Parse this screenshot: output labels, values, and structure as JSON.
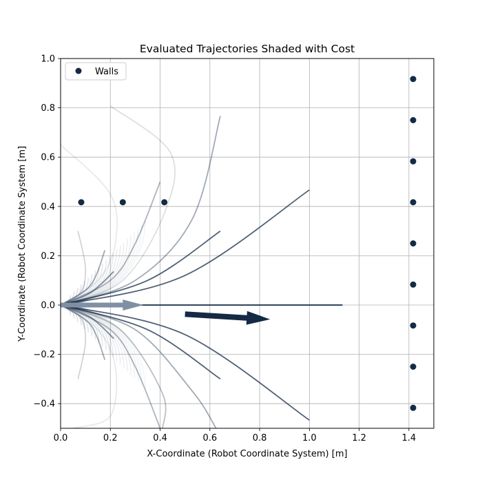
{
  "chart_data": {
    "type": "line",
    "title": "Evaluated Trajectories Shaded with Cost",
    "xlabel": "X-Coordinate (Robot Coordinate System) [m]",
    "ylabel": "Y-Coordinate (Robot Coordinate System [m]",
    "xlim": [
      0.0,
      1.5
    ],
    "ylim": [
      -0.5,
      1.0
    ],
    "xticks": [
      "0.0",
      "0.2",
      "0.4",
      "0.6",
      "0.8",
      "1.0",
      "1.2",
      "1.4"
    ],
    "yticks": [
      "−0.4",
      "−0.2",
      "0.0",
      "0.2",
      "0.4",
      "0.6",
      "0.8",
      "1.0"
    ],
    "xtick_values": [
      0.0,
      0.2,
      0.4,
      0.6,
      0.8,
      1.0,
      1.2,
      1.4
    ],
    "ytick_values": [
      -0.4,
      -0.2,
      0.0,
      0.2,
      0.4,
      0.6,
      0.8,
      1.0
    ],
    "grid": true,
    "legend": {
      "position": "top-left",
      "entries": [
        "Walls"
      ]
    },
    "colors": {
      "walls": "#142a45",
      "trajectory": "#142a45",
      "best_arrow": "#142a45",
      "start_arrow": "#8090a4"
    },
    "walls": [
      {
        "x": 0.083,
        "y": 0.417
      },
      {
        "x": 0.25,
        "y": 0.417
      },
      {
        "x": 0.417,
        "y": 0.417
      },
      {
        "x": 1.417,
        "y": 0.917
      },
      {
        "x": 1.417,
        "y": 0.75
      },
      {
        "x": 1.417,
        "y": 0.583
      },
      {
        "x": 1.417,
        "y": 0.417
      },
      {
        "x": 1.417,
        "y": 0.25
      },
      {
        "x": 1.417,
        "y": 0.083
      },
      {
        "x": 1.417,
        "y": -0.083
      },
      {
        "x": 1.417,
        "y": -0.25
      },
      {
        "x": 1.417,
        "y": -0.417
      }
    ],
    "trajectories": [
      {
        "path": [
          [
            0,
            0
          ],
          [
            1.133,
            0
          ]
        ],
        "opacity": 1.0
      },
      {
        "path": [
          [
            0,
            0
          ],
          [
            0.5,
            0.12
          ],
          [
            1.0,
            0.467
          ]
        ],
        "opacity": 0.75
      },
      {
        "path": [
          [
            0,
            0
          ],
          [
            0.5,
            -0.12
          ],
          [
            1.0,
            -0.467
          ]
        ],
        "opacity": 0.75
      },
      {
        "path": [
          [
            0,
            0
          ],
          [
            0.35,
            0.1
          ],
          [
            0.642,
            0.3
          ]
        ],
        "opacity": 0.75
      },
      {
        "path": [
          [
            0,
            0
          ],
          [
            0.35,
            -0.1
          ],
          [
            0.642,
            -0.3
          ]
        ],
        "opacity": 0.75
      },
      {
        "path": [
          [
            0,
            0
          ],
          [
            0.3,
            0.1
          ],
          [
            0.53,
            0.35
          ],
          [
            0.642,
            0.767
          ]
        ],
        "opacity": 0.4
      },
      {
        "path": [
          [
            0,
            0
          ],
          [
            0.3,
            -0.1
          ],
          [
            0.53,
            -0.35
          ],
          [
            0.625,
            -0.5
          ]
        ],
        "opacity": 0.4
      },
      {
        "path": [
          [
            0,
            0
          ],
          [
            0.25,
            0.1
          ],
          [
            0.42,
            0.38
          ],
          [
            0.442,
            0.617
          ],
          [
            0.2,
            0.808
          ]
        ],
        "opacity": 0.15
      },
      {
        "path": [
          [
            0,
            0
          ],
          [
            0.24,
            -0.1
          ],
          [
            0.41,
            -0.36
          ],
          [
            0.41,
            -0.5
          ]
        ],
        "opacity": 0.3
      },
      {
        "path": [
          [
            0,
            0
          ],
          [
            0.12,
            0.05
          ],
          [
            0.214,
            0.136
          ]
        ],
        "opacity": 0.5
      },
      {
        "path": [
          [
            0,
            0
          ],
          [
            0.12,
            -0.05
          ],
          [
            0.214,
            -0.136
          ]
        ],
        "opacity": 0.5
      },
      {
        "path": [
          [
            0,
            0
          ],
          [
            0.12,
            0.08
          ],
          [
            0.178,
            0.222
          ]
        ],
        "opacity": 0.4
      },
      {
        "path": [
          [
            0,
            0
          ],
          [
            0.12,
            -0.08
          ],
          [
            0.178,
            -0.222
          ]
        ],
        "opacity": 0.4
      },
      {
        "path": [
          [
            0,
            0
          ],
          [
            0.2,
            0.1
          ],
          [
            0.3,
            0.25
          ],
          [
            0.4,
            0.5
          ]
        ],
        "opacity": 0.35
      },
      {
        "path": [
          [
            0,
            0
          ],
          [
            0.2,
            -0.1
          ],
          [
            0.3,
            -0.25
          ],
          [
            0.4,
            -0.5
          ]
        ],
        "opacity": 0.35
      },
      {
        "path": [
          [
            0,
            0
          ],
          [
            0.08,
            0.05
          ],
          [
            0.1,
            0.15
          ],
          [
            0.07,
            0.3
          ]
        ],
        "opacity": 0.2
      },
      {
        "path": [
          [
            0,
            0
          ],
          [
            0.08,
            -0.05
          ],
          [
            0.1,
            -0.15
          ],
          [
            0.07,
            -0.3
          ]
        ],
        "opacity": 0.2
      },
      {
        "path": [
          [
            0,
            0
          ],
          [
            0.15,
            0.1
          ],
          [
            0.22,
            0.25
          ],
          [
            0.2,
            0.45
          ],
          [
            0.0,
            0.65
          ]
        ],
        "opacity": 0.1
      },
      {
        "path": [
          [
            0,
            0
          ],
          [
            0.15,
            -0.1
          ],
          [
            0.22,
            -0.25
          ],
          [
            0.2,
            -0.45
          ],
          [
            0.05,
            -0.5
          ]
        ],
        "opacity": 0.1
      }
    ],
    "small_arcs": {
      "center_x": 0.0,
      "count": 22,
      "max_radius": 0.34,
      "min_radius": 0.04,
      "opacity": 0.12
    },
    "best_arrow": {
      "from": [
        0.5,
        -0.037
      ],
      "to": [
        0.842,
        -0.058
      ]
    },
    "start_arrow": {
      "from": [
        0.0,
        0.0
      ],
      "to": [
        0.333,
        0.0
      ]
    }
  }
}
